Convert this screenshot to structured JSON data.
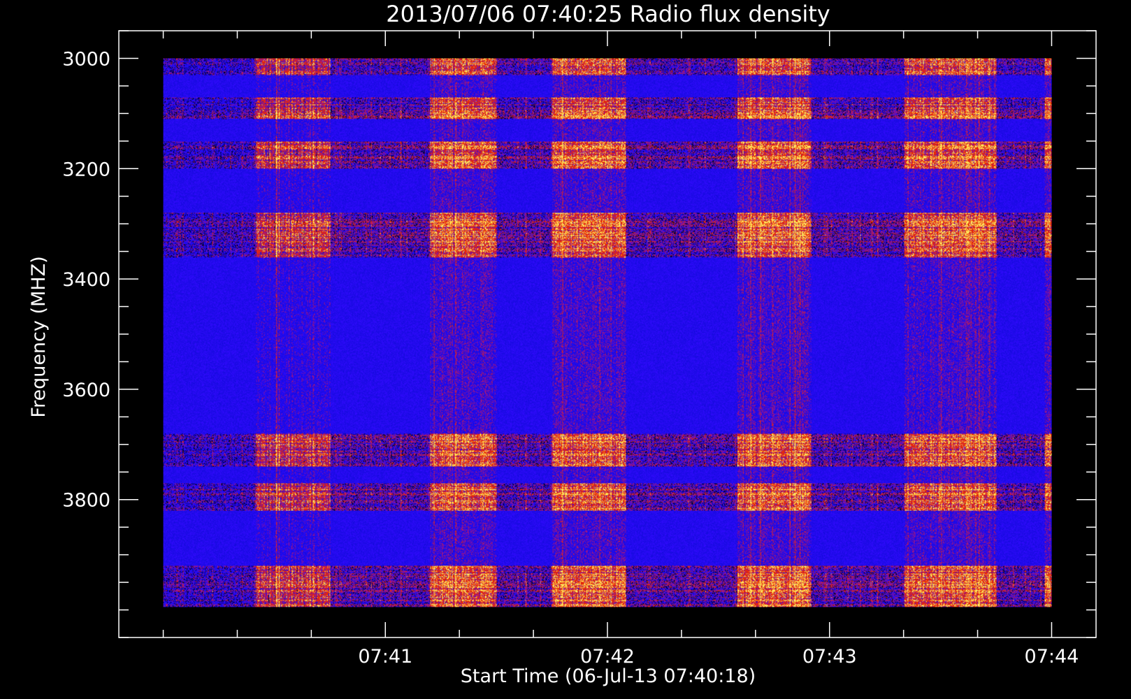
{
  "chart_data": {
    "type": "heatmap",
    "title": "2013/07/06 07:40:25 Radio flux density",
    "xlabel": "Start Time (06-Jul-13 07:40:18)",
    "ylabel": "Frequency (MHZ)",
    "x_tick_labels": [
      "07:41",
      "07:42",
      "07:43",
      "07:44"
    ],
    "x_major_ticks_sec": [
      60,
      120,
      180,
      240
    ],
    "x_minor_step_sec": 20,
    "xlim_sec": [
      -12,
      252
    ],
    "data_xlim_sec": [
      0,
      240
    ],
    "y_tick_labels": [
      "3000",
      "3200",
      "3400",
      "3600",
      "3800"
    ],
    "y_major_ticks": [
      3000,
      3200,
      3400,
      3600,
      3800
    ],
    "y_minor_step": 50,
    "ylim": [
      2950,
      4050
    ],
    "data_ylim": [
      3000,
      3995
    ],
    "y_reversed": true,
    "colors": {
      "background": "#0000ff",
      "low": "#000000",
      "mid": "#d00000",
      "high": "#ffff80",
      "axis": "#ffffff"
    },
    "active_time_bands_sec": [
      [
        25,
        45
      ],
      [
        72,
        90
      ],
      [
        105,
        125
      ],
      [
        155,
        175
      ],
      [
        200,
        225
      ],
      [
        238,
        240
      ]
    ],
    "interference_freq_bands": [
      [
        3000,
        3030
      ],
      [
        3070,
        3110
      ],
      [
        3150,
        3200
      ],
      [
        3280,
        3360
      ],
      [
        3680,
        3740
      ],
      [
        3770,
        3820
      ],
      [
        3920,
        3995
      ]
    ]
  }
}
